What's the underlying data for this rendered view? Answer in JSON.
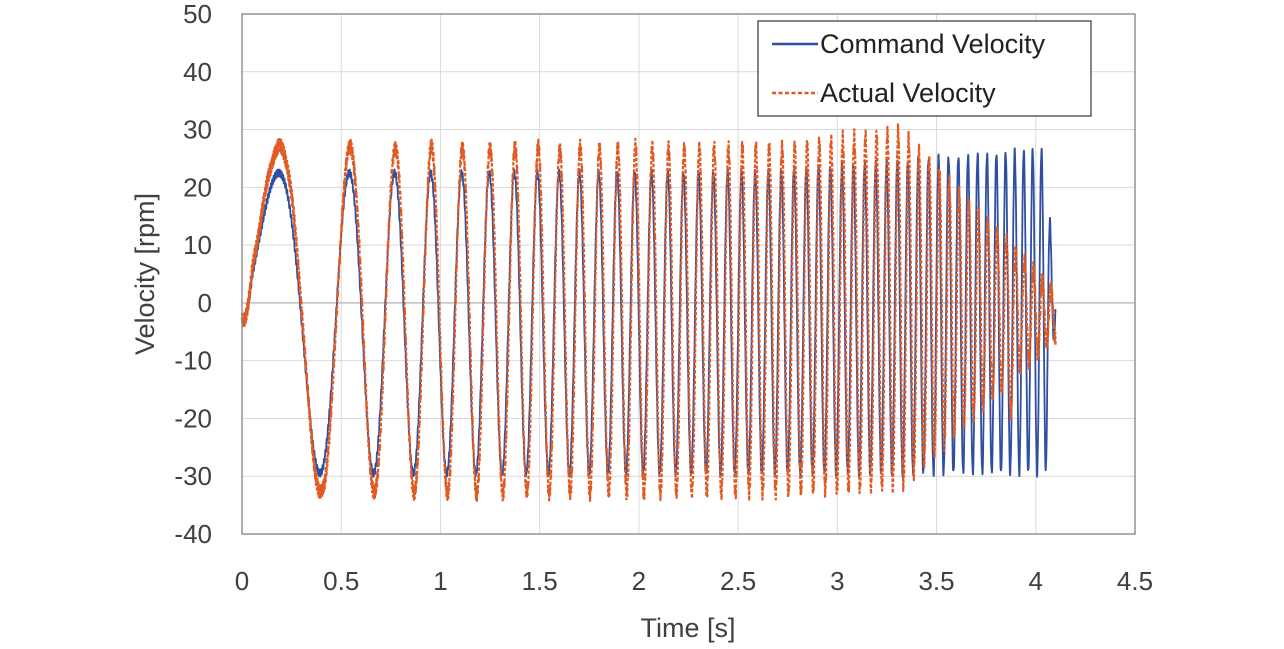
{
  "chart_data": {
    "type": "line",
    "xlabel": "Time [s]",
    "ylabel": "Velocity [rpm]",
    "xlim": [
      0,
      4.5
    ],
    "ylim": [
      -40,
      50
    ],
    "x_ticks": [
      0,
      0.5,
      1,
      1.5,
      2,
      2.5,
      3,
      3.5,
      4,
      4.5
    ],
    "x_tick_labels": [
      "0",
      "0.5",
      "1",
      "1.5",
      "2",
      "2.5",
      "3",
      "3.5",
      "4",
      "4.5"
    ],
    "y_ticks": [
      -40,
      -30,
      -20,
      -10,
      0,
      10,
      20,
      30,
      40,
      50
    ],
    "y_tick_labels": [
      "-40",
      "-30",
      "-20",
      "-10",
      "0",
      "10",
      "20",
      "30",
      "40",
      "50"
    ],
    "grid": true,
    "legend_position": "top-right",
    "series": [
      {
        "name": "Command Velocity",
        "color": "#2f4f9f",
        "style": "solid",
        "description_points": {
          "x": [
            0,
            0.59,
            1.02,
            1.27,
            1.43,
            1.56,
            1.67,
            1.75,
            1.82,
            1.88,
            2.0,
            2.5,
            3.0,
            3.5,
            4.0,
            4.1
          ],
          "y": [
            0,
            28,
            -33,
            27,
            -33,
            26,
            -33,
            26,
            -33,
            26,
            -33,
            26,
            27,
            29,
            30,
            0
          ]
        }
      },
      {
        "name": "Actual Velocity",
        "color": "#e05a22",
        "style": "dashed",
        "description_points": {
          "x": [
            0,
            0.59,
            1.02,
            1.27,
            1.43,
            1.56,
            1.67,
            1.75,
            2.0,
            2.5,
            3.0,
            3.3,
            3.6,
            3.9,
            4.1
          ],
          "y": [
            0,
            28,
            -33,
            27,
            -33,
            26,
            -33,
            26,
            -34,
            25,
            -33,
            28,
            -28,
            -16,
            0
          ]
        }
      }
    ]
  }
}
